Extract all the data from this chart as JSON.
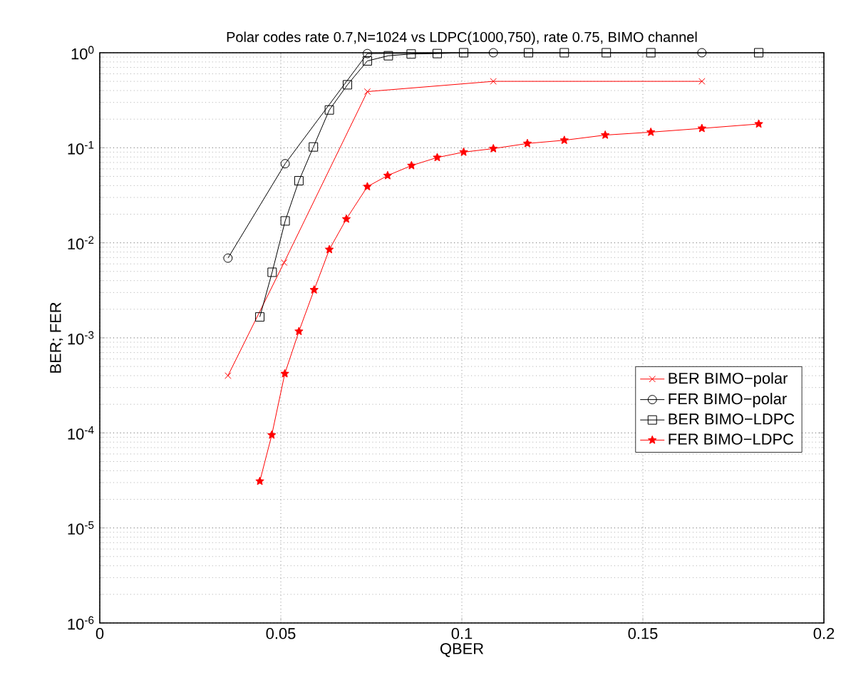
{
  "chart_data": {
    "type": "line",
    "title": "Polar codes rate 0.7,N=1024 vs LDPC(1000,750), rate 0.75, BIMO channel",
    "xlabel": "QBER",
    "ylabel": "BER; FER",
    "xlim": [
      0,
      0.2
    ],
    "ylim": [
      1e-06,
      1
    ],
    "log": "y",
    "grid": true,
    "legend": "right",
    "xticks": [
      0,
      0.05,
      0.1,
      0.15,
      0.2
    ],
    "yticks": [
      {
        "value": 1e-06,
        "label": "10$^{-6}$"
      },
      {
        "value": 1e-05,
        "label": "10$^{-5}$"
      },
      {
        "value": 0.0001,
        "label": "10$^{-4}$"
      },
      {
        "value": 0.001,
        "label": "10$^{-3}$"
      },
      {
        "value": 0.01,
        "label": "10$^{-2}$"
      },
      {
        "value": 0.1,
        "label": "10$^{-1}$"
      },
      {
        "value": 1,
        "label": "10$^{0}$"
      }
    ],
    "series": [
      {
        "name": "BER BIMO−polar",
        "color": "#ff0000",
        "marker": "cross",
        "x": [
          0.0354,
          0.0509,
          0.0739,
          0.1087,
          0.1663
        ],
        "values": [
          0.0004,
          0.0062,
          0.39,
          0.5,
          0.5
        ]
      },
      {
        "name": "FER BIMO−polar",
        "color": "#000000",
        "marker": "circle",
        "x": [
          0.0354,
          0.0512,
          0.0739,
          0.1087,
          0.1663
        ],
        "values": [
          0.0069,
          0.068,
          0.98,
          1,
          1
        ]
      },
      {
        "name": "BER BIMO−LDPC",
        "color": "#000000",
        "marker": "square",
        "x": [
          0.0442,
          0.0476,
          0.0512,
          0.055,
          0.059,
          0.0634,
          0.0684,
          0.0739,
          0.0797,
          0.086,
          0.0932,
          0.1005,
          0.1184,
          0.1283,
          0.1399,
          0.1522,
          0.182
        ],
        "values": [
          0.00166,
          0.0049,
          0.017,
          0.045,
          0.102,
          0.25,
          0.46,
          0.82,
          0.93,
          0.97,
          0.98,
          1,
          1,
          1,
          1,
          1,
          1
        ]
      },
      {
        "name": "FER BIMO−LDPC",
        "color": "#ff0000",
        "marker": "star",
        "x": [
          0.0442,
          0.0475,
          0.0511,
          0.055,
          0.0592,
          0.0634,
          0.0681,
          0.0739,
          0.0795,
          0.0861,
          0.0932,
          0.1005,
          0.1087,
          0.1181,
          0.1283,
          0.1396,
          0.1522,
          0.1663,
          0.182
        ],
        "values": [
          3.1e-05,
          9.5e-05,
          0.00042,
          0.00117,
          0.0032,
          0.0085,
          0.0178,
          0.039,
          0.051,
          0.065,
          0.079,
          0.09,
          0.098,
          0.111,
          0.12,
          0.136,
          0.146,
          0.16,
          0.178
        ]
      }
    ]
  }
}
